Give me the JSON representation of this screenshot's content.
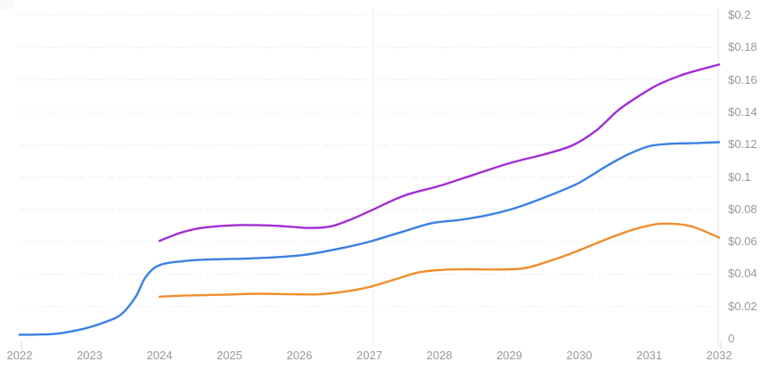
{
  "chart": {
    "background_color": "#ffffff",
    "axis_line_color": "#e3e3e7",
    "gridline_color": "#f1f1f3",
    "guide_line_color": "#ededf1",
    "tick_mark_color": "#d9d9de",
    "label_color": "#96989d"
  },
  "chart_data": {
    "type": "line",
    "title": "",
    "subtitle": "",
    "xlabel": "",
    "ylabel": "",
    "legend": "none",
    "grid": "horizontal-dashed",
    "xlim": [
      2022,
      2032
    ],
    "ylim": [
      0,
      0.2
    ],
    "y_axis_side": "right",
    "vertical_guide_year": 2027.05,
    "x_ticks": [
      {
        "value": 2022,
        "label": "2022"
      },
      {
        "value": 2023,
        "label": "2023"
      },
      {
        "value": 2024,
        "label": "2024"
      },
      {
        "value": 2025,
        "label": "2025"
      },
      {
        "value": 2026,
        "label": "2026"
      },
      {
        "value": 2027,
        "label": "2027"
      },
      {
        "value": 2028,
        "label": "2028"
      },
      {
        "value": 2029,
        "label": "2029"
      },
      {
        "value": 2030,
        "label": "2030"
      },
      {
        "value": 2031,
        "label": "2031"
      },
      {
        "value": 2032,
        "label": "2032"
      }
    ],
    "y_ticks": [
      {
        "value": 0.2,
        "label": "$0.2"
      },
      {
        "value": 0.18,
        "label": "$0.18"
      },
      {
        "value": 0.16,
        "label": "$0.16"
      },
      {
        "value": 0.14,
        "label": "$0.14"
      },
      {
        "value": 0.12,
        "label": "$0.12"
      },
      {
        "value": 0.1,
        "label": "$0.1"
      },
      {
        "value": 0.08,
        "label": "$0.08"
      },
      {
        "value": 0.06,
        "label": "$0.06"
      },
      {
        "value": 0.04,
        "label": "$0.04"
      },
      {
        "value": 0.02,
        "label": "$0.02"
      },
      {
        "value": 0,
        "label": "0"
      }
    ],
    "series": [
      {
        "name": "blue-series",
        "color": "#3a80e4",
        "points": [
          [
            2022.0,
            0.0025
          ],
          [
            2022.5,
            0.003
          ],
          [
            2022.9,
            0.006
          ],
          [
            2023.2,
            0.01
          ],
          [
            2023.45,
            0.015
          ],
          [
            2023.66,
            0.026
          ],
          [
            2023.8,
            0.038
          ],
          [
            2024.0,
            0.0455
          ],
          [
            2024.35,
            0.048
          ],
          [
            2024.7,
            0.049
          ],
          [
            2025.2,
            0.0495
          ],
          [
            2025.7,
            0.0505
          ],
          [
            2026.1,
            0.052
          ],
          [
            2026.6,
            0.056
          ],
          [
            2027.0,
            0.06
          ],
          [
            2027.5,
            0.0665
          ],
          [
            2027.9,
            0.0715
          ],
          [
            2028.3,
            0.0735
          ],
          [
            2028.7,
            0.0765
          ],
          [
            2029.1,
            0.081
          ],
          [
            2029.6,
            0.089
          ],
          [
            2030.0,
            0.0965
          ],
          [
            2030.4,
            0.107
          ],
          [
            2030.7,
            0.114
          ],
          [
            2031.0,
            0.119
          ],
          [
            2031.3,
            0.1205
          ],
          [
            2031.7,
            0.121
          ],
          [
            2032.0,
            0.1215
          ]
        ]
      },
      {
        "name": "orange-series",
        "color": "#ef8e2c",
        "points": [
          [
            2024.0,
            0.026
          ],
          [
            2024.4,
            0.0268
          ],
          [
            2024.9,
            0.0272
          ],
          [
            2025.4,
            0.0278
          ],
          [
            2025.9,
            0.0275
          ],
          [
            2026.3,
            0.0275
          ],
          [
            2026.7,
            0.0295
          ],
          [
            2027.0,
            0.032
          ],
          [
            2027.35,
            0.0365
          ],
          [
            2027.7,
            0.041
          ],
          [
            2028.0,
            0.0425
          ],
          [
            2028.4,
            0.043
          ],
          [
            2028.8,
            0.0428
          ],
          [
            2029.2,
            0.0435
          ],
          [
            2029.5,
            0.047
          ],
          [
            2029.9,
            0.053
          ],
          [
            2030.3,
            0.06
          ],
          [
            2030.7,
            0.0665
          ],
          [
            2031.0,
            0.07
          ],
          [
            2031.25,
            0.0712
          ],
          [
            2031.6,
            0.0695
          ],
          [
            2032.0,
            0.0625
          ]
        ]
      },
      {
        "name": "purple-series",
        "color": "#a32cd5",
        "points": [
          [
            2024.0,
            0.0605
          ],
          [
            2024.3,
            0.0655
          ],
          [
            2024.6,
            0.0685
          ],
          [
            2025.0,
            0.07
          ],
          [
            2025.4,
            0.0702
          ],
          [
            2025.8,
            0.0695
          ],
          [
            2026.15,
            0.0685
          ],
          [
            2026.45,
            0.0695
          ],
          [
            2026.75,
            0.074
          ],
          [
            2027.05,
            0.0798
          ],
          [
            2027.5,
            0.0885
          ],
          [
            2028.0,
            0.0945
          ],
          [
            2028.5,
            0.1015
          ],
          [
            2029.0,
            0.1085
          ],
          [
            2029.5,
            0.114
          ],
          [
            2029.9,
            0.1195
          ],
          [
            2030.25,
            0.129
          ],
          [
            2030.55,
            0.141
          ],
          [
            2030.85,
            0.15
          ],
          [
            2031.15,
            0.1575
          ],
          [
            2031.5,
            0.1635
          ],
          [
            2032.0,
            0.1695
          ]
        ]
      }
    ]
  }
}
